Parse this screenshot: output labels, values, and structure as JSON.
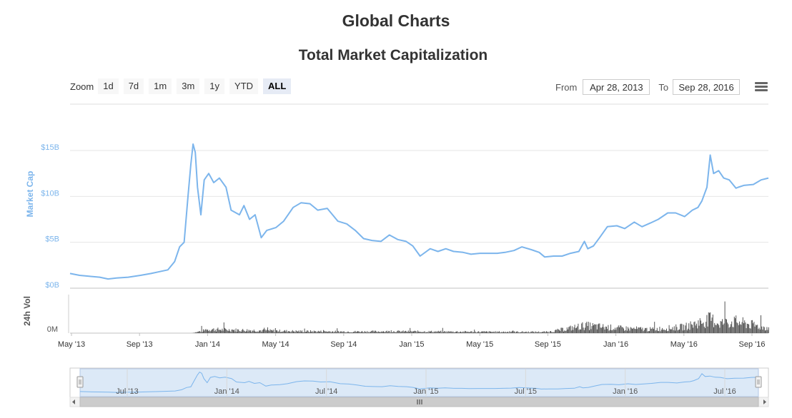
{
  "page": {
    "title": "Global Charts"
  },
  "toolbar": {
    "zoom_label": "Zoom",
    "zoom_buttons": [
      "1d",
      "7d",
      "1m",
      "3m",
      "1y",
      "YTD",
      "ALL"
    ],
    "active_zoom": "ALL",
    "from_label": "From",
    "from_value": "Apr 28, 2013",
    "to_label": "To",
    "to_value": "Sep 28, 2016",
    "menu_icon": "hamburger-menu-icon"
  },
  "colors": {
    "line": "#7cb5ec",
    "volume": "#555555",
    "navigator_fill": "#dce9f7"
  },
  "chart_data": {
    "type": "line",
    "title": "Total Market Capitalization",
    "ylabel": "Market Cap",
    "volume_label": "24h Vol",
    "ylim": [
      0,
      15
    ],
    "y_ticks": [
      "$0B",
      "$5B",
      "$10B",
      "$15B"
    ],
    "volume_ticks": [
      "0M"
    ],
    "x_range": [
      "2013-04-28",
      "2016-09-28"
    ],
    "x_ticks": [
      "May '13",
      "Sep '13",
      "Jan '14",
      "May '14",
      "Sep '14",
      "Jan '15",
      "May '15",
      "Sep '15",
      "Jan '16",
      "May '16",
      "Sep '16"
    ],
    "navigator_ticks": [
      "Jul '13",
      "Jan '14",
      "Jul '14",
      "Jan '15",
      "Jul '15",
      "Jan '16",
      "Jul '16"
    ],
    "grid": true,
    "series": [
      {
        "name": "Market Cap",
        "unit": "billion USD",
        "x": [
          "2013-04-28",
          "2013-05-15",
          "2013-06-01",
          "2013-06-20",
          "2013-07-05",
          "2013-07-20",
          "2013-08-10",
          "2013-09-01",
          "2013-09-20",
          "2013-10-05",
          "2013-10-20",
          "2013-11-01",
          "2013-11-10",
          "2013-11-18",
          "2013-11-25",
          "2013-11-30",
          "2013-12-04",
          "2013-12-08",
          "2013-12-12",
          "2013-12-18",
          "2013-12-24",
          "2014-01-01",
          "2014-01-10",
          "2014-01-20",
          "2014-02-01",
          "2014-02-10",
          "2014-02-25",
          "2014-03-05",
          "2014-03-15",
          "2014-03-25",
          "2014-04-05",
          "2014-04-15",
          "2014-05-01",
          "2014-05-15",
          "2014-06-01",
          "2014-06-15",
          "2014-07-01",
          "2014-07-15",
          "2014-08-01",
          "2014-08-20",
          "2014-09-05",
          "2014-09-20",
          "2014-10-05",
          "2014-10-20",
          "2014-11-05",
          "2014-11-20",
          "2014-12-05",
          "2014-12-20",
          "2015-01-01",
          "2015-01-14",
          "2015-02-01",
          "2015-02-15",
          "2015-03-01",
          "2015-03-15",
          "2015-04-01",
          "2015-04-15",
          "2015-05-01",
          "2015-05-15",
          "2015-06-01",
          "2015-06-15",
          "2015-07-01",
          "2015-07-15",
          "2015-08-01",
          "2015-08-15",
          "2015-08-25",
          "2015-09-10",
          "2015-09-25",
          "2015-10-10",
          "2015-10-25",
          "2015-11-04",
          "2015-11-10",
          "2015-11-20",
          "2015-12-01",
          "2015-12-15",
          "2016-01-01",
          "2016-01-15",
          "2016-02-01",
          "2016-02-15",
          "2016-03-01",
          "2016-03-15",
          "2016-04-01",
          "2016-04-15",
          "2016-05-01",
          "2016-05-15",
          "2016-05-25",
          "2016-06-01",
          "2016-06-10",
          "2016-06-16",
          "2016-06-22",
          "2016-07-01",
          "2016-07-10",
          "2016-07-20",
          "2016-08-01",
          "2016-08-05",
          "2016-08-15",
          "2016-09-01",
          "2016-09-15",
          "2016-09-28"
        ],
        "values": [
          1.6,
          1.4,
          1.3,
          1.2,
          1.0,
          1.1,
          1.2,
          1.4,
          1.6,
          1.8,
          2.0,
          2.9,
          4.5,
          5.0,
          10.0,
          13.5,
          15.7,
          14.8,
          11.0,
          8.0,
          11.8,
          12.5,
          11.5,
          12.0,
          11.0,
          8.5,
          8.0,
          9.0,
          7.5,
          8.0,
          5.5,
          6.3,
          6.6,
          7.3,
          8.8,
          9.3,
          9.2,
          8.5,
          8.7,
          7.3,
          7.0,
          6.3,
          5.4,
          5.2,
          5.1,
          5.8,
          5.3,
          5.1,
          4.6,
          3.5,
          4.3,
          4.0,
          4.3,
          4.0,
          3.9,
          3.7,
          3.8,
          3.8,
          3.8,
          3.9,
          4.1,
          4.5,
          4.2,
          3.9,
          3.4,
          3.5,
          3.5,
          3.8,
          4.0,
          5.1,
          4.3,
          4.6,
          5.5,
          6.7,
          6.8,
          6.5,
          7.2,
          6.7,
          7.1,
          7.5,
          8.2,
          8.2,
          7.8,
          8.5,
          8.8,
          9.5,
          11.0,
          14.5,
          12.5,
          12.8,
          12.0,
          11.8,
          10.9,
          11.0,
          11.2,
          11.3,
          11.8,
          12.0
        ]
      },
      {
        "name": "24h Vol",
        "unit": "relative",
        "x": [
          "2013-04-28",
          "2013-12-01",
          "2014-01-01",
          "2014-03-01",
          "2014-06-01",
          "2014-09-01",
          "2014-12-01",
          "2015-03-01",
          "2015-06-01",
          "2015-09-01",
          "2015-11-04",
          "2016-01-01",
          "2016-03-01",
          "2016-05-01",
          "2016-06-16",
          "2016-07-01",
          "2016-08-01",
          "2016-09-28"
        ],
        "values": [
          0,
          0,
          0.15,
          0.12,
          0.08,
          0.06,
          0.07,
          0.06,
          0.05,
          0.05,
          0.3,
          0.2,
          0.15,
          0.25,
          0.55,
          0.4,
          0.45,
          0.2
        ]
      }
    ]
  }
}
